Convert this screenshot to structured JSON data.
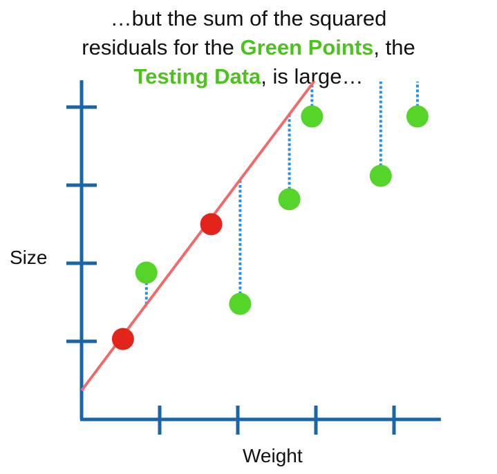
{
  "title": {
    "line1": "…but the sum of the squared",
    "line2_pre": "residuals for the ",
    "line2_hl": "Green Points",
    "line2_post": ", the",
    "line3_hl": "Testing Data",
    "line3_post": ", is large…"
  },
  "colors": {
    "axis": "#1a64a8",
    "fit_line": "#ef6b6b",
    "training_point": "#e3241b",
    "testing_point": "#55d42a",
    "residual": "#2b8fe0",
    "highlight_text": "#4cc21c"
  },
  "chart_data": {
    "type": "scatter",
    "title": "",
    "xlabel": "Weight",
    "ylabel": "Size",
    "xlim": [
      0,
      4.6
    ],
    "ylim": [
      0,
      4.3
    ],
    "x_ticks": [
      1,
      2,
      3,
      4
    ],
    "y_ticks": [
      1,
      2,
      3,
      4
    ],
    "tick_labels_shown": false,
    "grid": false,
    "fit_line": {
      "intercept": 0.37,
      "slope": 1.33
    },
    "series": [
      {
        "role": "training",
        "color": "red",
        "points": [
          {
            "x": 0.53,
            "y": 1.03
          },
          {
            "x": 1.66,
            "y": 2.5
          }
        ]
      },
      {
        "role": "testing",
        "color": "green",
        "points": [
          {
            "x": 0.83,
            "y": 1.88
          },
          {
            "x": 2.03,
            "y": 1.48
          },
          {
            "x": 2.66,
            "y": 2.82
          },
          {
            "x": 2.95,
            "y": 3.88
          },
          {
            "x": 3.83,
            "y": 3.12
          },
          {
            "x": 4.3,
            "y": 3.88
          }
        ]
      }
    ]
  }
}
